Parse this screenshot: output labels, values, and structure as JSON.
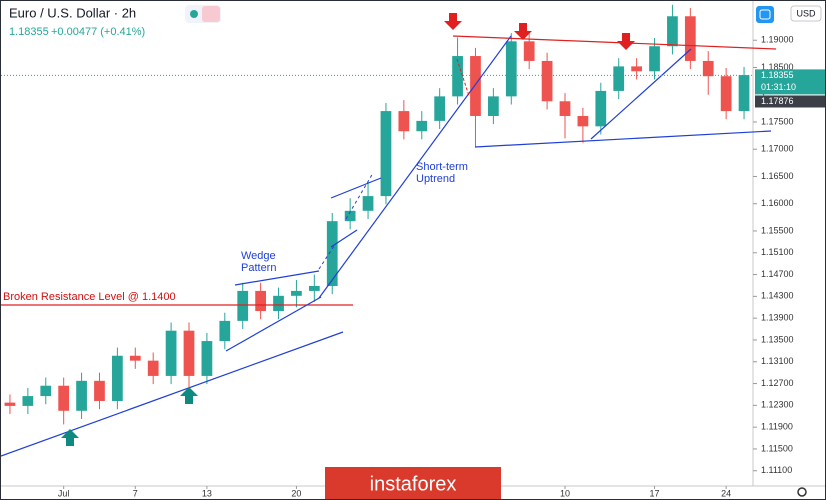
{
  "chart_data": {
    "type": "candlestick",
    "title": "Euro / U.S. Dollar · 2h",
    "last_price": 1.18355,
    "change": "+0.00477 (+0.41%)",
    "currency": "USD",
    "countdown": "01:31:10",
    "prev_price": 1.17876,
    "watermark": "instaforex",
    "annotations": [
      [
        "Broken Resistance Level @ 1.1400"
      ],
      [
        "Wedge",
        "Pattern"
      ],
      [
        "Short-term",
        "Uptrend"
      ]
    ],
    "up_color": "#26a69a",
    "down_color": "#ef5350",
    "categories": [
      null,
      null,
      null,
      "Jul",
      null,
      null,
      null,
      "7",
      null,
      null,
      null,
      "13",
      null,
      null,
      null,
      null,
      "20",
      null,
      null,
      null,
      null,
      null,
      null,
      null,
      null,
      null,
      null,
      null,
      null,
      null,
      null,
      "10",
      null,
      null,
      null,
      null,
      "17",
      null,
      null,
      null,
      "24",
      null
    ],
    "open": [
      1.1235,
      1.1229,
      1.1247,
      1.1266,
      1.122,
      1.1275,
      1.1238,
      1.1321,
      1.1312,
      1.1284,
      1.1367,
      1.1284,
      1.1348,
      1.1385,
      1.144,
      1.1403,
      1.1431,
      1.144,
      1.1449,
      1.1568,
      1.1587,
      1.1614,
      1.177,
      1.1733,
      1.1752,
      1.1797,
      1.1871,
      1.1761,
      1.1797,
      1.1898,
      1.1862,
      1.1788,
      1.1761,
      1.1742,
      1.1807,
      1.1852,
      1.1843,
      1.1889,
      1.1944,
      1.1862,
      1.1834,
      1.177
    ],
    "high": [
      1.125,
      1.1262,
      1.1281,
      1.1281,
      1.129,
      1.129,
      1.1336,
      1.1336,
      1.1327,
      1.1382,
      1.1382,
      1.1363,
      1.14,
      1.1455,
      1.1455,
      1.1446,
      1.146,
      1.147,
      1.1583,
      1.161,
      1.164,
      1.1785,
      1.179,
      1.177,
      1.1812,
      1.1905,
      1.1886,
      1.1812,
      1.1913,
      1.1913,
      1.1877,
      1.1803,
      1.1776,
      1.1822,
      1.1867,
      1.1867,
      1.1904,
      1.1965,
      1.1959,
      1.188,
      1.1849,
      1.1851
    ],
    "low": [
      1.1214,
      1.1214,
      1.1232,
      1.1195,
      1.1205,
      1.1223,
      1.1223,
      1.1297,
      1.1269,
      1.1269,
      1.1262,
      1.1269,
      1.1333,
      1.137,
      1.1388,
      1.1388,
      1.141,
      1.142,
      1.1434,
      1.1553,
      1.1572,
      1.1599,
      1.1718,
      1.1718,
      1.1737,
      1.1782,
      1.1705,
      1.1746,
      1.1782,
      1.1847,
      1.1773,
      1.172,
      1.1712,
      1.1727,
      1.1792,
      1.1828,
      1.1828,
      1.1874,
      1.1847,
      1.18,
      1.1755,
      1.1755
    ],
    "close": [
      1.1229,
      1.1247,
      1.1266,
      1.122,
      1.1275,
      1.1238,
      1.1321,
      1.1312,
      1.1284,
      1.1367,
      1.1284,
      1.1348,
      1.1385,
      1.144,
      1.1403,
      1.1431,
      1.144,
      1.1449,
      1.1568,
      1.1587,
      1.1614,
      1.177,
      1.1733,
      1.1752,
      1.1797,
      1.1871,
      1.1761,
      1.1797,
      1.1898,
      1.1862,
      1.1788,
      1.1761,
      1.1742,
      1.1807,
      1.1852,
      1.1843,
      1.1889,
      1.1944,
      1.1862,
      1.1834,
      1.177,
      1.1836
    ],
    "ylim": [
      1.1082,
      1.1972
    ],
    "yticks": [
      {
        "value": 1.19,
        "label": "1.19000"
      },
      {
        "value": 1.185,
        "label": "1.18500"
      },
      {
        "value": 1.175,
        "label": "1.17500"
      },
      {
        "value": 1.17,
        "label": "1.17000"
      },
      {
        "value": 1.165,
        "label": "1.16500"
      },
      {
        "value": 1.16,
        "label": "1.16000"
      },
      {
        "value": 1.155,
        "label": "1.15500"
      },
      {
        "value": 1.151,
        "label": "1.15100"
      },
      {
        "value": 1.147,
        "label": "1.14700"
      },
      {
        "value": 1.143,
        "label": "1.14300"
      },
      {
        "value": 1.139,
        "label": "1.13900"
      },
      {
        "value": 1.135,
        "label": "1.13500"
      },
      {
        "value": 1.131,
        "label": "1.13100"
      },
      {
        "value": 1.127,
        "label": "1.12700"
      },
      {
        "value": 1.123,
        "label": "1.12300"
      },
      {
        "value": 1.119,
        "label": "1.11900"
      },
      {
        "value": 1.115,
        "label": "1.11500"
      },
      {
        "value": 1.111,
        "label": "1.11100"
      }
    ]
  }
}
